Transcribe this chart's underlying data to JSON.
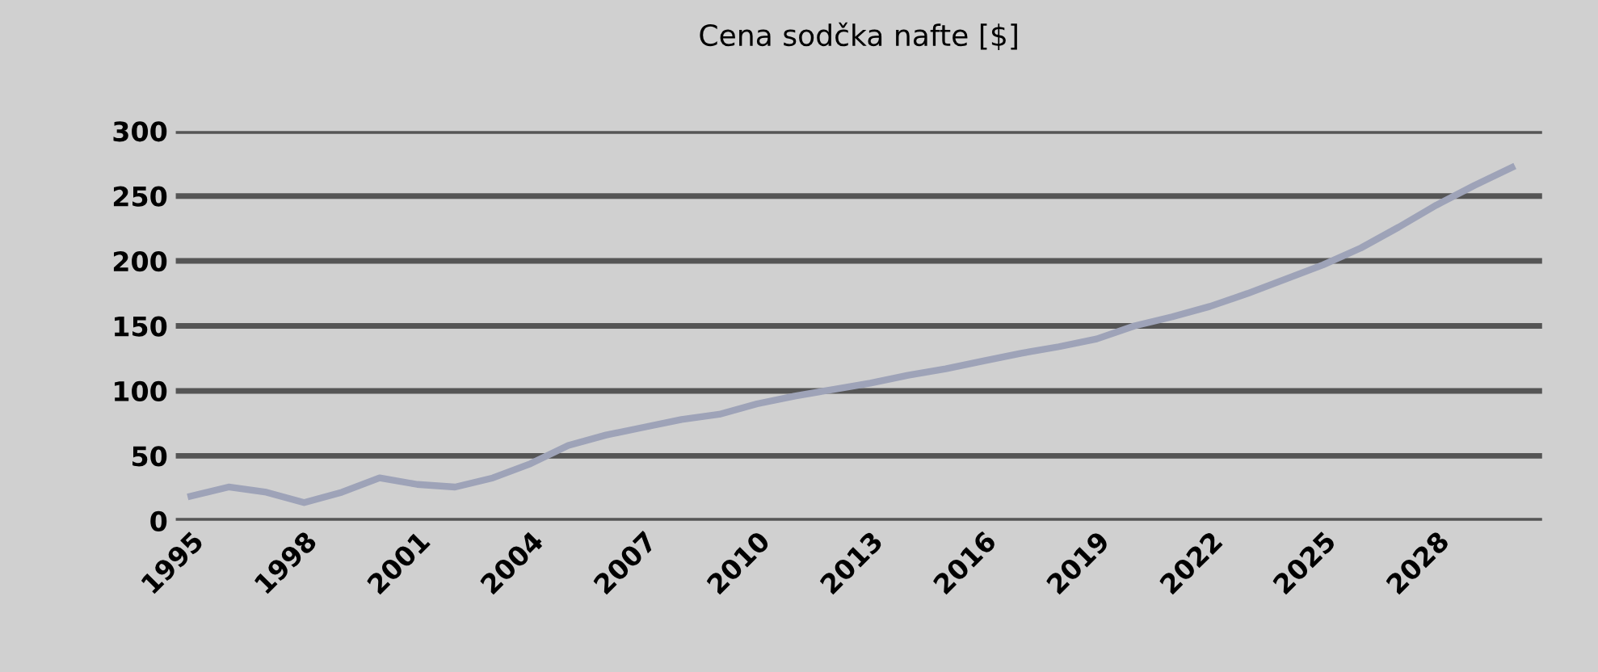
{
  "chart_data": {
    "type": "line",
    "title": "Cena sodčka nafte [$]",
    "categories": [
      "1995",
      null,
      null,
      "1998",
      null,
      null,
      "2001",
      null,
      null,
      "2004",
      null,
      null,
      "2007",
      null,
      null,
      "2010",
      null,
      null,
      "2013",
      null,
      null,
      "2016",
      null,
      null,
      "2019",
      null,
      null,
      "2022",
      null,
      null,
      "2025",
      null,
      null,
      "2028",
      null,
      null
    ],
    "series": [
      {
        "color": "#9ea3b8",
        "values": [
          19,
          26,
          22,
          14,
          22,
          33,
          28,
          26,
          33,
          44,
          58,
          66,
          72,
          78,
          82,
          90,
          96,
          101,
          106,
          112,
          117,
          123,
          129,
          134,
          140,
          150,
          157,
          165,
          175,
          186,
          197,
          210,
          226,
          243,
          258,
          272
        ]
      }
    ],
    "ylim": [
      0,
      300
    ],
    "yticks": [
      0,
      50,
      100,
      150,
      200,
      250,
      300
    ],
    "grid": "y"
  }
}
